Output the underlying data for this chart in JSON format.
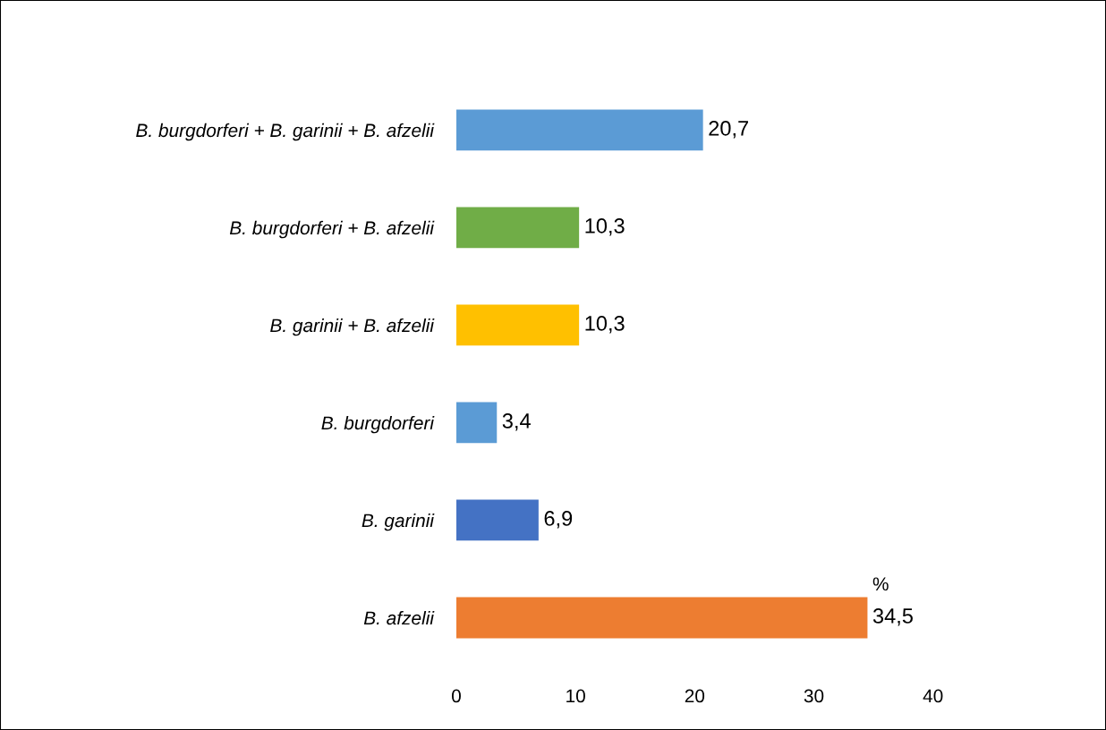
{
  "chart_data": {
    "type": "bar",
    "orientation": "horizontal",
    "categories": [
      "B. burgdorferi + B. garinii + B. afzelii",
      "B. burgdorferi + B. afzelii",
      "B. garinii + B. afzelii",
      "B. burgdorferi",
      "B. garinii",
      "B. afzelii"
    ],
    "values": [
      20.7,
      10.3,
      10.3,
      3.4,
      6.9,
      34.5
    ],
    "colors": [
      "#5b9bd5",
      "#70ad47",
      "#ffc000",
      "#5b9bd5",
      "#4472c4",
      "#ed7d31"
    ],
    "value_labels": [
      "20,7",
      "10,3",
      "10,3",
      "3,4",
      "6,9",
      "34,5"
    ],
    "xlim": [
      0,
      40
    ],
    "xticks": [
      0,
      10,
      20,
      30,
      40
    ],
    "annotations": [
      {
        "text": "%",
        "x": 34.5,
        "y": "B. afzelii"
      }
    ],
    "grid": false,
    "legend": false
  }
}
